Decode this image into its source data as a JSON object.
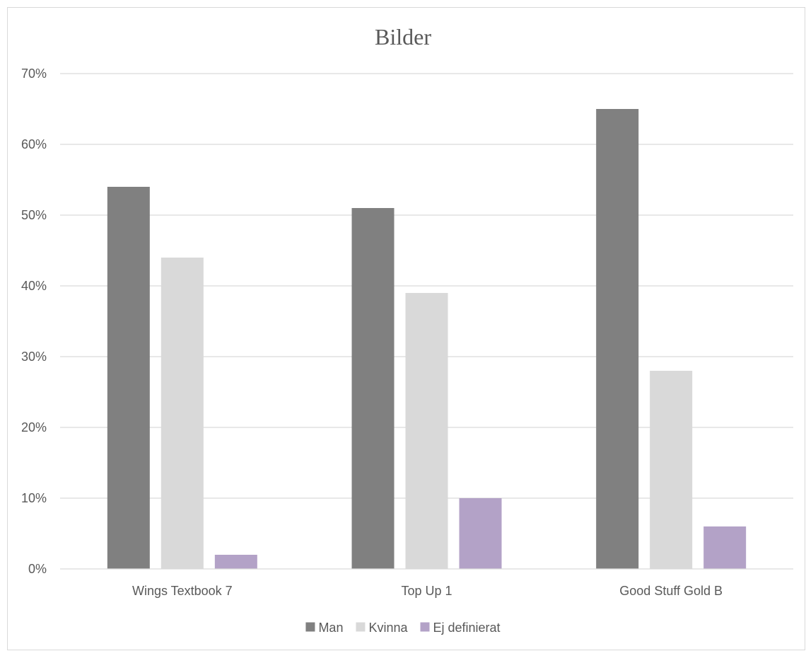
{
  "chart_data": {
    "type": "bar",
    "title": "Bilder",
    "xlabel": "",
    "ylabel": "",
    "categories": [
      "Wings Textbook 7",
      "Top Up 1",
      "Good Stuff Gold B"
    ],
    "series": [
      {
        "name": "Man",
        "color": "#808080",
        "values": [
          54,
          51,
          65
        ]
      },
      {
        "name": "Kvinna",
        "color": "#d9d9d9",
        "values": [
          44,
          39,
          28
        ]
      },
      {
        "name": "Ej definierat",
        "color": "#b3a2c7",
        "values": [
          2,
          10,
          6
        ]
      }
    ],
    "ylim": [
      0,
      70
    ],
    "y_ticks": [
      0,
      10,
      20,
      30,
      40,
      50,
      60,
      70
    ],
    "y_tick_format": "percent",
    "grid": true,
    "legend_position": "bottom"
  }
}
